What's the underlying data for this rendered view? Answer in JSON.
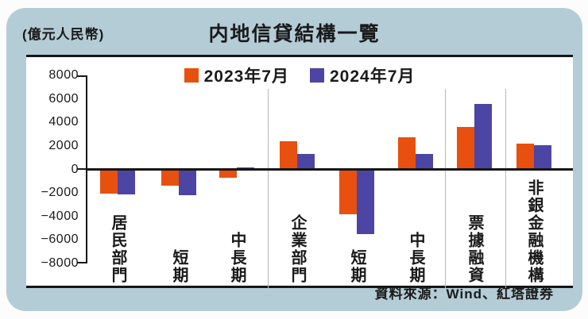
{
  "header": {
    "unit_label": "(億元人民幣)",
    "title": "内地信貸結構一覽"
  },
  "footer": {
    "source": "資料來源：Wind、紅塔證券"
  },
  "colors": {
    "series_2023": "#e8500f",
    "series_2024": "#4c45a3",
    "card_bg": "#b4ccd6",
    "axis": "#161616",
    "separator": "#b9b9b9"
  },
  "chart_data": {
    "type": "bar",
    "title": "内地信貸結構一覽",
    "unit": "億元人民幣",
    "categories": [
      "居民部門",
      "短期",
      "中長期",
      "企業部門",
      "短期",
      "中長期",
      "票據融資",
      "非銀金融機構"
    ],
    "series": [
      {
        "name": "2023年7月",
        "color": "#e8500f",
        "values": [
          -2010,
          -1340,
          -670,
          2380,
          -3790,
          2710,
          3600,
          2170
        ]
      },
      {
        "name": "2024年7月",
        "color": "#4c45a3",
        "values": [
          -2100,
          -2160,
          100,
          1300,
          -5500,
          1300,
          5590,
          2060
        ]
      }
    ],
    "ylim": [
      -8000,
      8000
    ],
    "ytick_step": 2000,
    "ytick_labels": [
      "8000",
      "6000",
      "4000",
      "2000",
      "0",
      "−2000",
      "−4000",
      "−6000",
      "−8000"
    ],
    "separators_after_category_index": [
      2,
      5,
      6
    ],
    "legend_position": "top-center",
    "grid": false
  }
}
